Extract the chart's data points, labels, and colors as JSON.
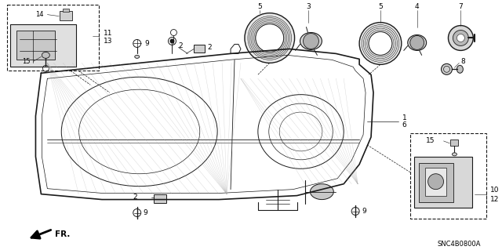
{
  "bg_color": "#ffffff",
  "diagram_code": "SNC4B0800A",
  "line_color": "#1a1a1a",
  "gray_color": "#888888",
  "light_gray": "#cccccc",
  "text_fontsize": 6.5,
  "small_fontsize": 5.5
}
